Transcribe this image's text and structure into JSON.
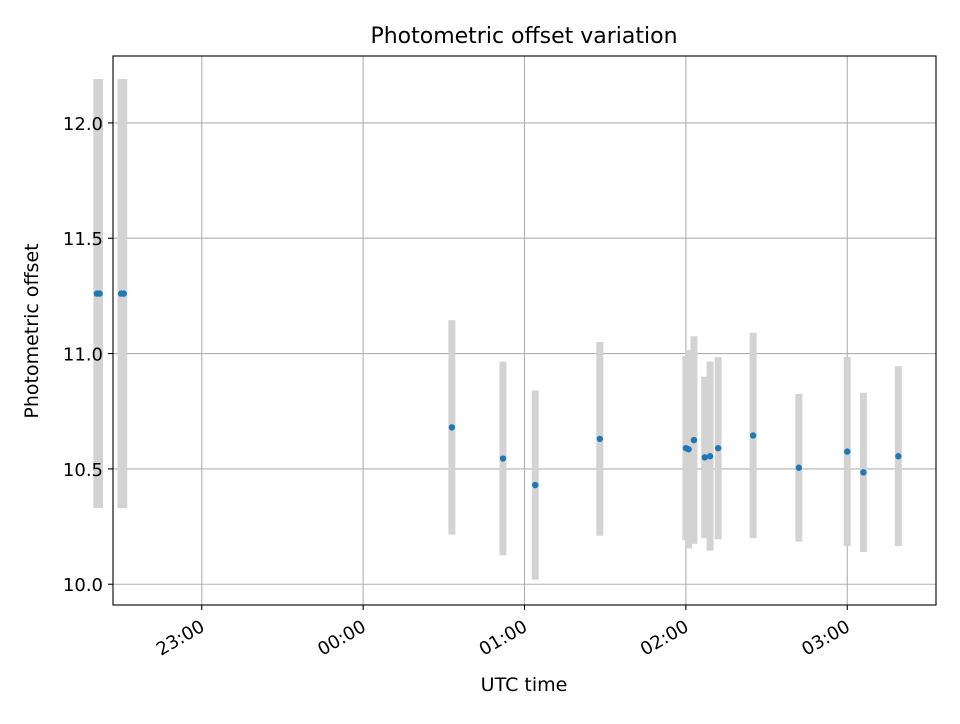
{
  "chart_data": {
    "type": "scatter",
    "title": "Photometric offset variation",
    "xlabel": "UTC time",
    "ylabel": "Photometric offset",
    "x_unit": "UTC time of day; values past midnight written with hour >= 24",
    "xlim": [
      "22:27",
      "27:33"
    ],
    "ylim": [
      9.91,
      12.29
    ],
    "x_ticks": [
      {
        "value": "23:00",
        "label": "23:00"
      },
      {
        "value": "24:00",
        "label": "00:00"
      },
      {
        "value": "25:00",
        "label": "01:00"
      },
      {
        "value": "26:00",
        "label": "02:00"
      },
      {
        "value": "27:00",
        "label": "03:00"
      }
    ],
    "y_ticks": [
      10.0,
      10.5,
      11.0,
      11.5,
      12.0
    ],
    "y_tick_labels": [
      "10.0",
      "10.5",
      "11.0",
      "11.5",
      "12.0"
    ],
    "grid": true,
    "marker_color": "#1f77b4",
    "errorbar_color": "#d3d3d3",
    "series": [
      {
        "points": [
          {
            "x": "22:21",
            "y": 11.26,
            "err": 0.93
          },
          {
            "x": "22:22",
            "y": 11.26,
            "err": 0.93
          },
          {
            "x": "22:30",
            "y": 11.26,
            "err": 0.93
          },
          {
            "x": "22:31",
            "y": 11.26,
            "err": 0.93
          },
          {
            "x": "24:33",
            "y": 10.68,
            "err": 0.465
          },
          {
            "x": "24:52",
            "y": 10.545,
            "err": 0.42
          },
          {
            "x": "25:04",
            "y": 10.43,
            "err": 0.41
          },
          {
            "x": "25:28",
            "y": 10.63,
            "err": 0.42
          },
          {
            "x": "26:00",
            "y": 10.59,
            "err": 0.4
          },
          {
            "x": "26:01",
            "y": 10.585,
            "err": 0.43
          },
          {
            "x": "26:03",
            "y": 10.625,
            "err": 0.45
          },
          {
            "x": "26:07",
            "y": 10.55,
            "err": 0.35
          },
          {
            "x": "26:09",
            "y": 10.555,
            "err": 0.41
          },
          {
            "x": "26:12",
            "y": 10.59,
            "err": 0.395
          },
          {
            "x": "26:25",
            "y": 10.645,
            "err": 0.445
          },
          {
            "x": "26:42",
            "y": 10.505,
            "err": 0.32
          },
          {
            "x": "27:00",
            "y": 10.575,
            "err": 0.41
          },
          {
            "x": "27:06",
            "y": 10.485,
            "err": 0.345
          },
          {
            "x": "27:19",
            "y": 10.555,
            "err": 0.39
          }
        ]
      }
    ]
  }
}
